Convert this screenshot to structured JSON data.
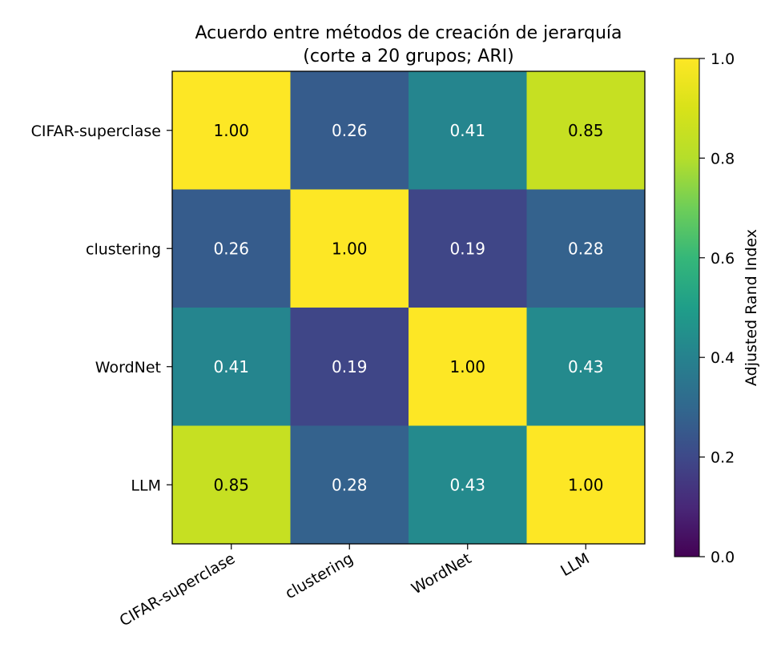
{
  "chart_data": {
    "type": "heatmap",
    "title_lines": [
      "Acuerdo entre métodos de creación de jerarquía",
      "(corte a 20 grupos; ARI)"
    ],
    "row_labels": [
      "CIFAR-superclase",
      "clustering",
      "WordNet",
      "LLM"
    ],
    "col_labels": [
      "CIFAR-superclase",
      "clustering",
      "WordNet",
      "LLM"
    ],
    "values": [
      [
        1.0,
        0.26,
        0.41,
        0.85
      ],
      [
        0.26,
        1.0,
        0.19,
        0.28
      ],
      [
        0.41,
        0.19,
        1.0,
        0.43
      ],
      [
        0.85,
        0.28,
        0.43,
        1.0
      ]
    ],
    "value_labels": [
      [
        "1.00",
        "0.26",
        "0.41",
        "0.85"
      ],
      [
        "0.26",
        "1.00",
        "0.19",
        "0.28"
      ],
      [
        "0.41",
        "0.19",
        "1.00",
        "0.43"
      ],
      [
        "0.85",
        "0.28",
        "0.43",
        "1.00"
      ]
    ],
    "colormap": "viridis",
    "vmin": 0.0,
    "vmax": 1.0,
    "colorbar": {
      "label": "Adjusted Rand Index",
      "ticks": [
        0.0,
        0.2,
        0.4,
        0.6,
        0.8,
        1.0
      ],
      "tick_labels": [
        "0.0",
        "0.2",
        "0.4",
        "0.6",
        "0.8",
        "1.0"
      ]
    }
  }
}
